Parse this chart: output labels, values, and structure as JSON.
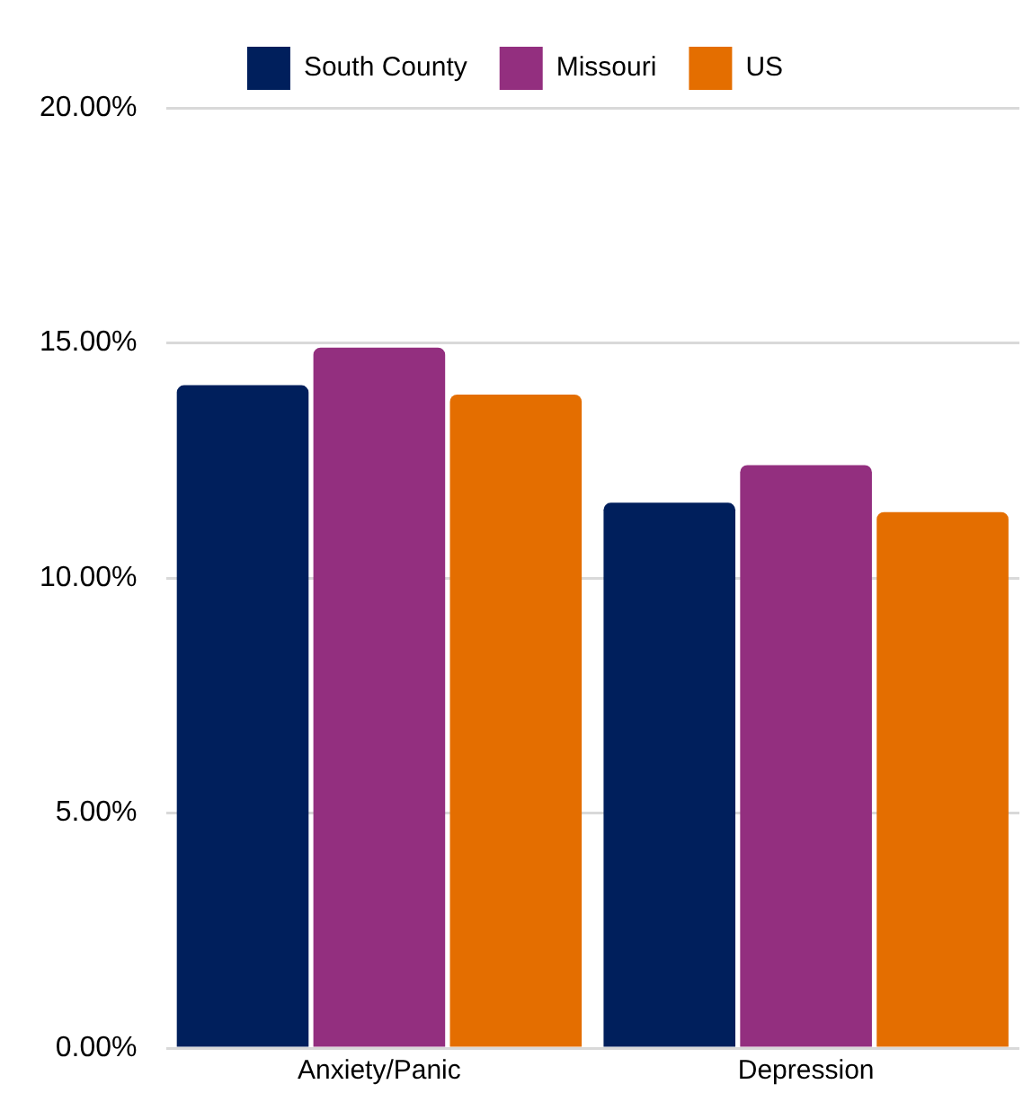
{
  "chart_data": {
    "type": "bar",
    "categories": [
      "Anxiety/Panic",
      "Depression"
    ],
    "series": [
      {
        "name": "South County",
        "color": "#001f5c",
        "values": [
          14.1,
          11.6
        ]
      },
      {
        "name": "Missouri",
        "color": "#932f7f",
        "values": [
          14.9,
          12.4
        ]
      },
      {
        "name": "US",
        "color": "#e46e00",
        "values": [
          13.9,
          11.4
        ]
      }
    ],
    "ylim": [
      0,
      20
    ],
    "yticks": [
      {
        "value": 0,
        "label": "0.00%"
      },
      {
        "value": 5,
        "label": "5.00%"
      },
      {
        "value": 10,
        "label": "10.00%"
      },
      {
        "value": 15,
        "label": "15.00%"
      },
      {
        "value": 20,
        "label": "20.00%"
      }
    ],
    "grid": "y",
    "legend": "top"
  }
}
